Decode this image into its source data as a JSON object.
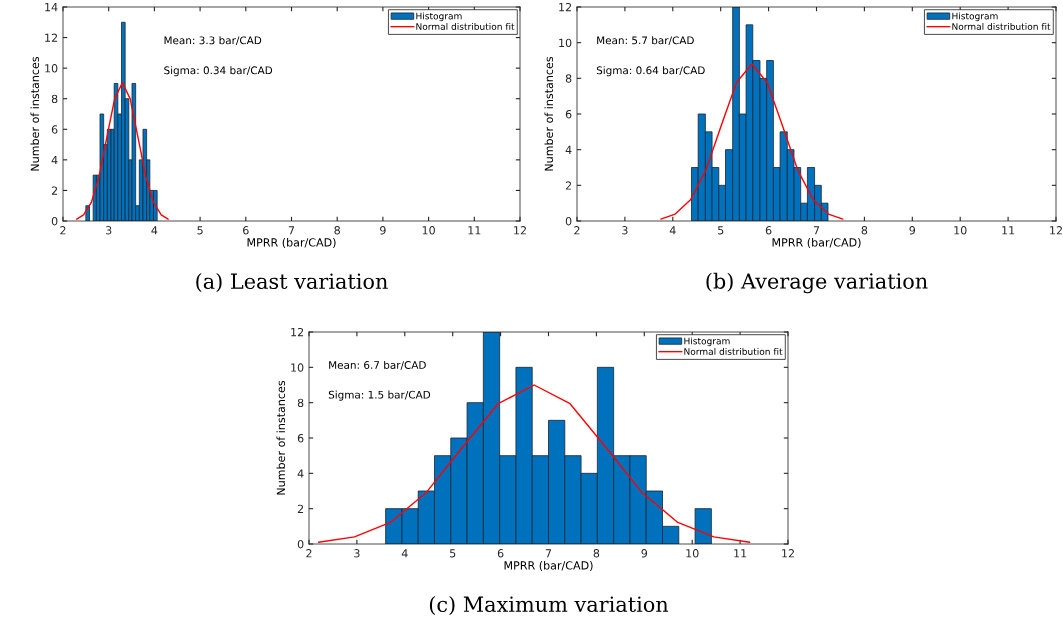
{
  "chart_data": [
    {
      "type": "histogram",
      "xlabel": "MPRR (bar/CAD)",
      "ylabel": "Number of instances",
      "xlim": [
        2,
        12
      ],
      "xticks": [
        2,
        3,
        4,
        5,
        6,
        7,
        8,
        9,
        10,
        11,
        12
      ],
      "ylim": [
        0,
        14
      ],
      "yticks": [
        0,
        2,
        4,
        6,
        8,
        10,
        12,
        14
      ],
      "legend": "top right",
      "grid": false,
      "annotations": [
        "Mean: 3.3 bar/CAD",
        "Sigma: 0.34 bar/CAD",
        "(a) Least variation"
      ],
      "bins": [
        2.5,
        2.58,
        2.66,
        2.73,
        2.81,
        2.89,
        2.97,
        3.05,
        3.12,
        3.2,
        3.28,
        3.36,
        3.44,
        3.51,
        3.59,
        3.67,
        3.75,
        3.83,
        3.9,
        3.98,
        4.06
      ],
      "series": [
        {
          "name": "Histogram",
          "color": "#0072bd",
          "values": [
            1,
            0,
            3,
            3,
            7,
            5,
            6,
            6,
            9,
            7,
            13,
            8,
            4,
            9,
            1,
            4,
            6,
            4,
            2,
            2
          ]
        },
        {
          "name": "Normal distribution fit",
          "type": "line",
          "color": "#ff0000",
          "x": [
            2.3,
            2.45,
            2.62,
            2.79,
            2.96,
            3.13,
            3.3,
            3.47,
            3.64,
            3.81,
            3.98,
            4.15,
            4.3
          ],
          "values": [
            0.12,
            0.4,
            1.22,
            2.93,
            5.49,
            7.99,
            9.05,
            7.99,
            5.49,
            2.93,
            1.22,
            0.4,
            0.12
          ]
        }
      ]
    },
    {
      "type": "histogram",
      "xlabel": "MPRR (bar/CAD)",
      "ylabel": "Number of instances",
      "xlim": [
        2,
        12
      ],
      "xticks": [
        2,
        3,
        4,
        5,
        6,
        7,
        8,
        9,
        10,
        11,
        12
      ],
      "ylim": [
        0,
        12
      ],
      "yticks": [
        0,
        2,
        4,
        6,
        8,
        10,
        12
      ],
      "legend": "top right",
      "grid": false,
      "annotations": [
        "Mean: 5.7 bar/CAD",
        "Sigma: 0.64 bar/CAD",
        "(b) Average variation"
      ],
      "bins": [
        4.39,
        4.53,
        4.68,
        4.82,
        4.96,
        5.1,
        5.25,
        5.39,
        5.53,
        5.67,
        5.82,
        5.96,
        6.1,
        6.24,
        6.39,
        6.53,
        6.67,
        6.81,
        6.96,
        7.1,
        7.24
      ],
      "series": [
        {
          "name": "Histogram",
          "color": "#0072bd",
          "values": [
            3,
            6,
            5,
            3,
            2,
            4,
            12,
            6,
            11,
            9,
            8,
            9,
            3,
            5,
            4,
            3,
            1,
            3,
            2,
            1
          ]
        },
        {
          "name": "Normal distribution fit",
          "type": "line",
          "color": "#ff0000",
          "x": [
            3.75,
            4.05,
            4.37,
            4.69,
            5.01,
            5.33,
            5.65,
            5.97,
            6.29,
            6.61,
            6.93,
            7.25,
            7.55
          ],
          "values": [
            0.11,
            0.39,
            1.19,
            2.85,
            5.34,
            7.77,
            8.8,
            7.77,
            5.34,
            2.85,
            1.19,
            0.39,
            0.11
          ]
        }
      ]
    },
    {
      "type": "histogram",
      "xlabel": "MPRR (bar/CAD)",
      "ylabel": "Number of instances",
      "xlim": [
        2,
        12
      ],
      "xticks": [
        2,
        3,
        4,
        5,
        6,
        7,
        8,
        9,
        10,
        11,
        12
      ],
      "ylim": [
        0,
        12
      ],
      "yticks": [
        0,
        2,
        4,
        6,
        8,
        10,
        12
      ],
      "legend": "top right",
      "grid": false,
      "annotations": [
        "Mean: 6.7 bar/CAD",
        "Sigma: 1.5 bar/CAD",
        "(c) Maximum variation"
      ],
      "bins": [
        3.6,
        3.94,
        4.28,
        4.62,
        4.96,
        5.3,
        5.64,
        5.98,
        6.32,
        6.66,
        7.0,
        7.34,
        7.68,
        8.02,
        8.36,
        8.7,
        9.04,
        9.38,
        9.72,
        10.06,
        10.4
      ],
      "series": [
        {
          "name": "Histogram",
          "color": "#0072bd",
          "values": [
            2,
            2,
            3,
            5,
            6,
            8,
            12,
            5,
            10,
            5,
            7,
            5,
            4,
            10,
            5,
            5,
            3,
            1,
            0,
            2
          ]
        },
        {
          "name": "Normal distribution fit",
          "type": "line",
          "color": "#ff0000",
          "x": [
            2.2,
            2.95,
            3.7,
            4.45,
            5.2,
            5.95,
            6.7,
            7.45,
            8.2,
            8.95,
            9.7,
            10.45,
            11.2
          ],
          "values": [
            0.1,
            0.4,
            1.22,
            2.92,
            5.46,
            7.94,
            9.0,
            7.94,
            5.46,
            2.92,
            1.22,
            0.4,
            0.1
          ]
        }
      ]
    }
  ]
}
